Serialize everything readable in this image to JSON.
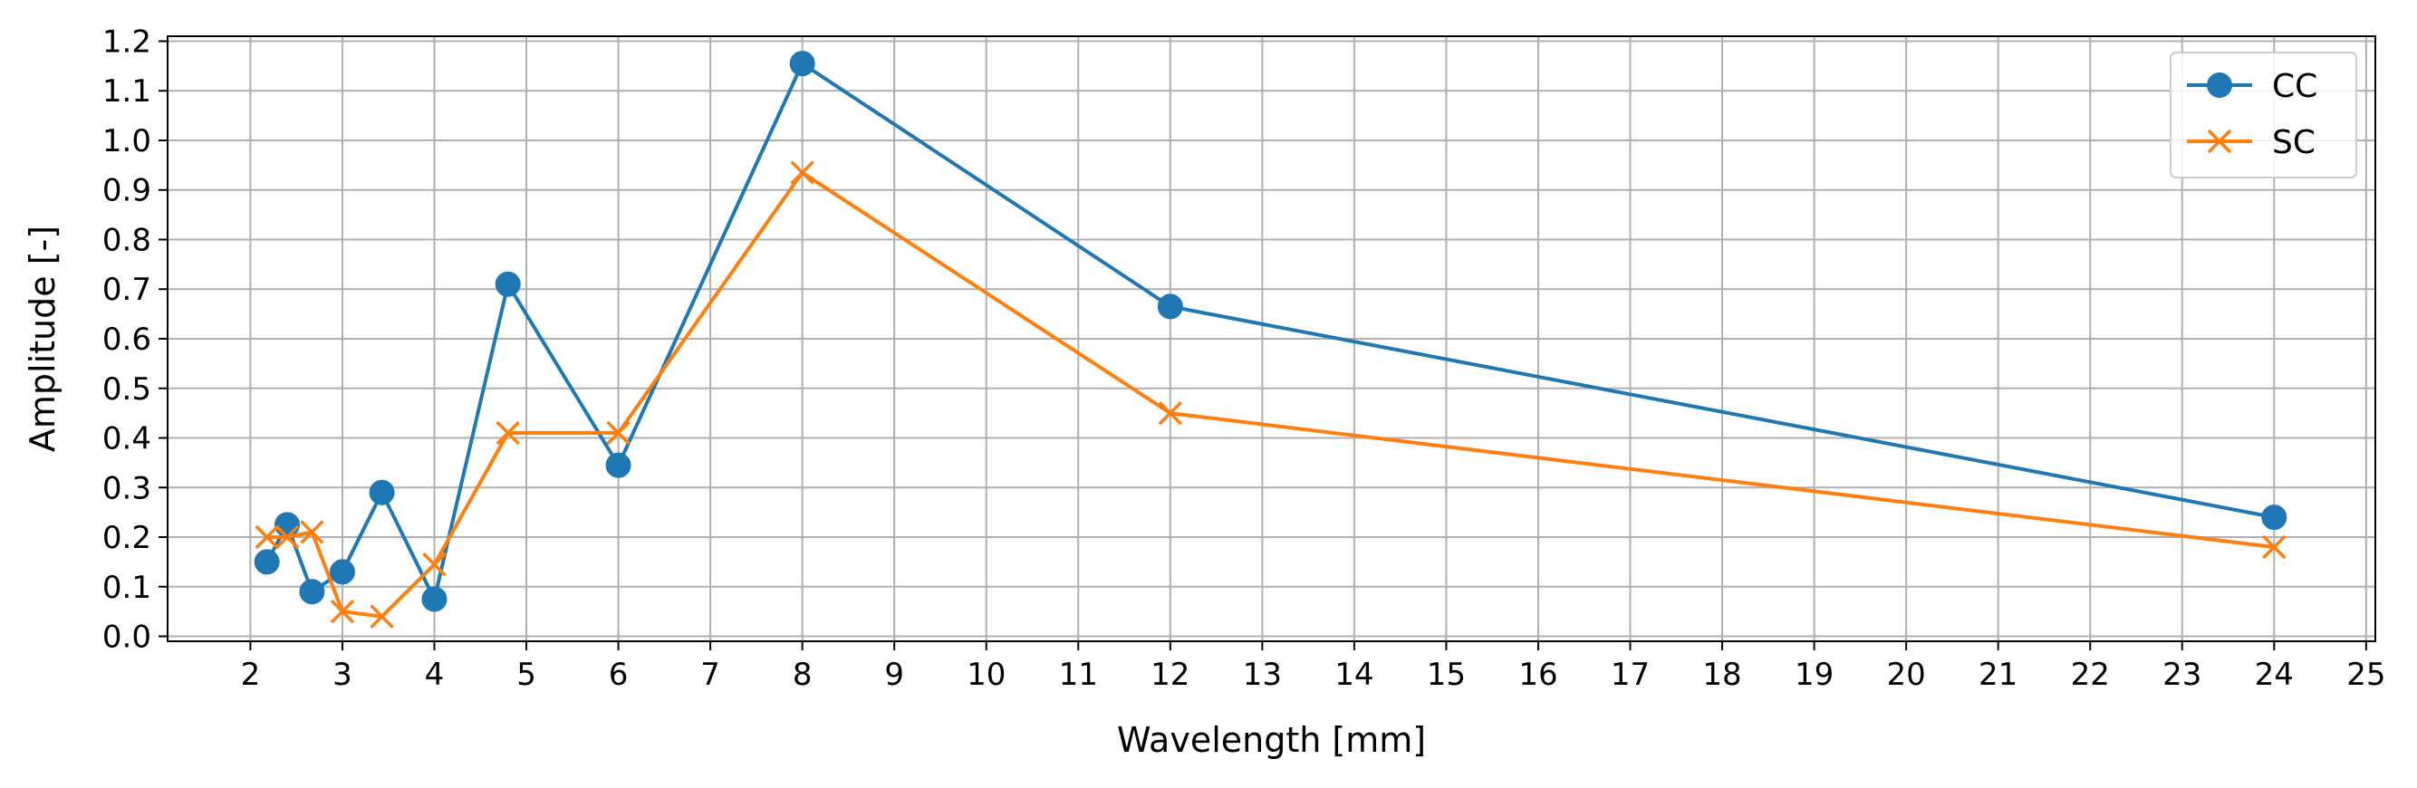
{
  "chart_data": {
    "type": "line",
    "xlabel": "Wavelength [mm]",
    "ylabel": "Amplitude [-]",
    "xlim": [
      1.1,
      25.1
    ],
    "ylim": [
      -0.01,
      1.21
    ],
    "x_ticks": [
      2,
      3,
      4,
      5,
      6,
      7,
      8,
      9,
      10,
      11,
      12,
      13,
      14,
      15,
      16,
      17,
      18,
      19,
      20,
      21,
      22,
      23,
      24,
      25
    ],
    "y_ticks": [
      0.0,
      0.1,
      0.2,
      0.3,
      0.4,
      0.5,
      0.6,
      0.7,
      0.8,
      0.9,
      1.0,
      1.1,
      1.2
    ],
    "grid": true,
    "legend_position": "top-right",
    "series": [
      {
        "name": "CC",
        "color": "#1f77b4",
        "marker": "circle",
        "x": [
          2.18,
          2.4,
          2.67,
          3.0,
          3.43,
          4.0,
          4.8,
          6.0,
          8.0,
          12.0,
          24.0
        ],
        "y": [
          0.15,
          0.225,
          0.09,
          0.13,
          0.29,
          0.075,
          0.71,
          0.345,
          1.155,
          0.665,
          0.24
        ]
      },
      {
        "name": "SC",
        "color": "#ff7f0e",
        "marker": "x",
        "x": [
          2.18,
          2.4,
          2.67,
          3.0,
          3.43,
          4.0,
          4.8,
          6.0,
          8.0,
          12.0,
          24.0
        ],
        "y": [
          0.2,
          0.2,
          0.21,
          0.05,
          0.04,
          0.145,
          0.41,
          0.41,
          0.935,
          0.45,
          0.18
        ]
      }
    ]
  }
}
